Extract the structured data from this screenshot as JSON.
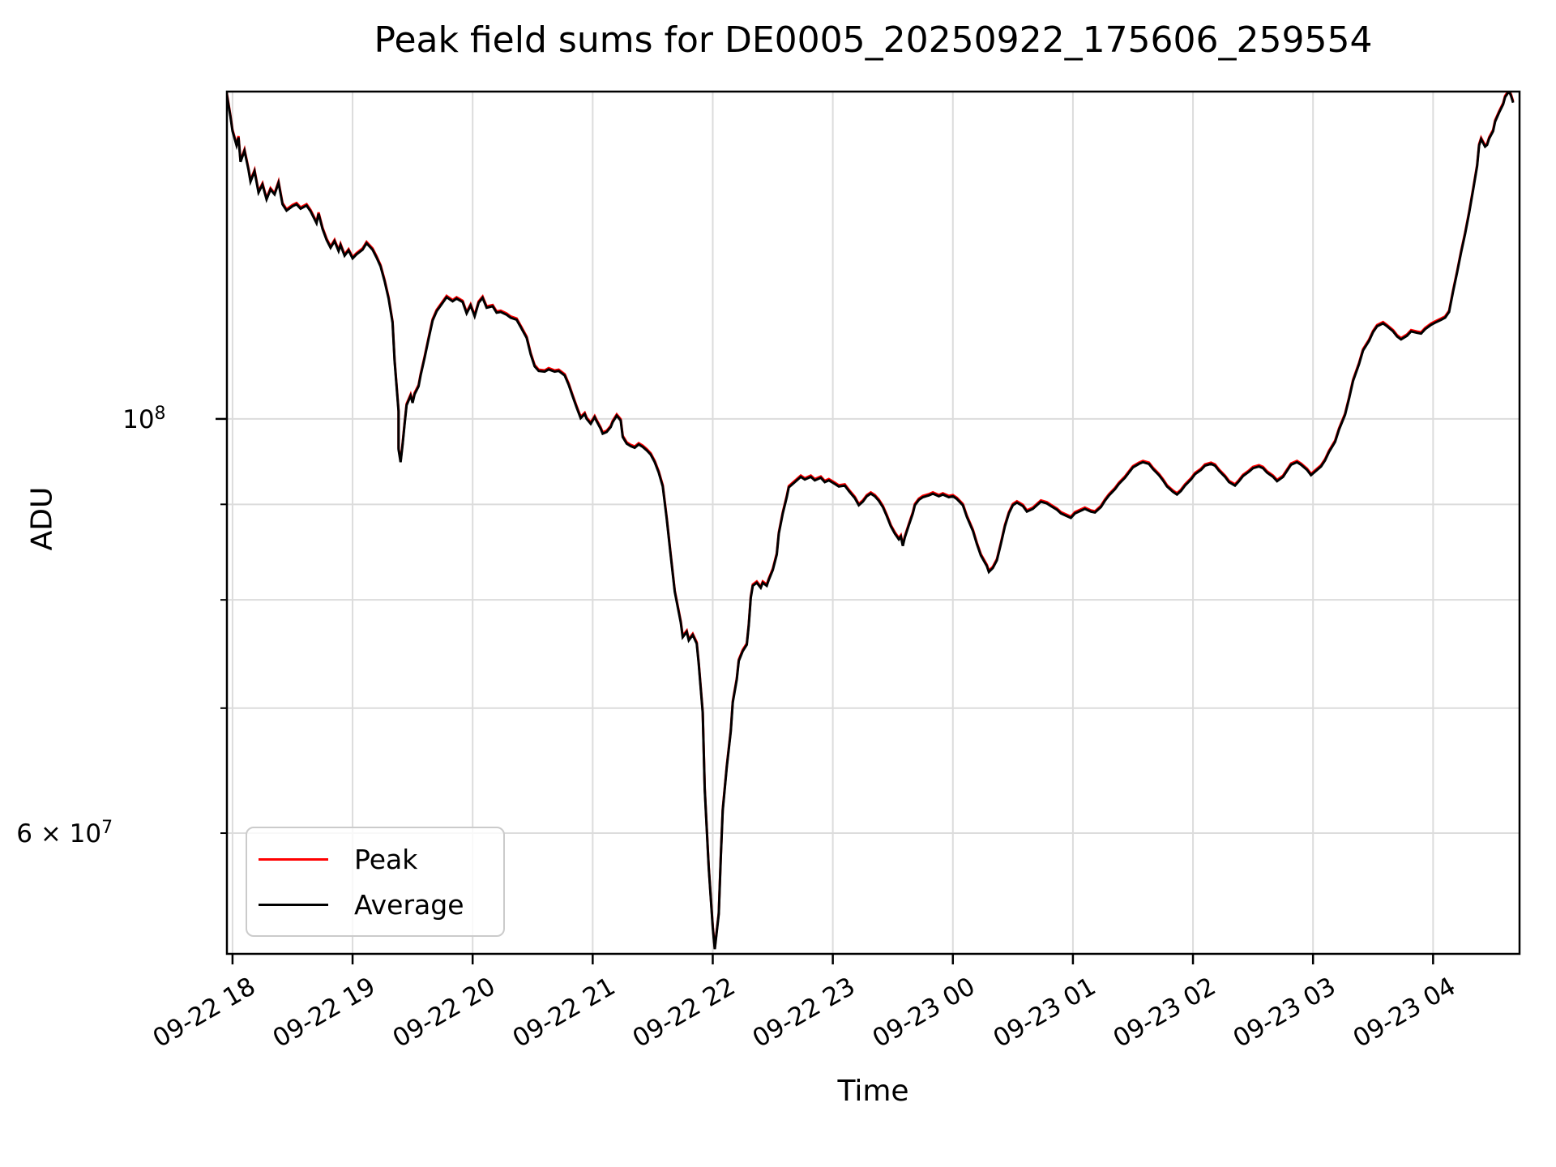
{
  "chart_data": {
    "type": "line",
    "title": "Peak field sums for DE0005_20250922_175606_259554",
    "xlabel": "Time",
    "ylabel": "ADU",
    "grid": true,
    "grid_color": "#dcdcdc",
    "x_axis": {
      "tick_labels": [
        "09-22 18",
        "09-22 19",
        "09-22 20",
        "09-22 21",
        "09-22 22",
        "09-22 23",
        "09-23 00",
        "09-23 01",
        "09-23 02",
        "09-23 03",
        "09-23 04"
      ],
      "tick_minutes": [
        0,
        60,
        120,
        180,
        240,
        300,
        360,
        420,
        480,
        540,
        600
      ],
      "label_rotation_deg": 30,
      "xlim_minutes": [
        -2.8,
        643.2
      ]
    },
    "y_axis": {
      "scale": "log",
      "ylim_adu_1e7": [
        5.17,
        14.973
      ],
      "major_tick": {
        "adu_1e7": 10,
        "label": {
          "prefix": "",
          "base": "10",
          "exp": "8"
        }
      },
      "labeled_minor_tick": {
        "adu_1e7": 6,
        "label": {
          "prefix": "6 × ",
          "base": "10",
          "exp": "7"
        }
      },
      "minor_ticks_adu_1e7": [
        6,
        7,
        8,
        9
      ],
      "gridlines_adu_1e7": [
        6,
        7,
        8,
        9,
        10
      ]
    },
    "legend": {
      "position": "lower left",
      "entries": [
        {
          "label": "Peak",
          "color": "#ff0000"
        },
        {
          "label": "Average",
          "color": "#000000"
        }
      ]
    },
    "series_note": "Peak (red) and Average (black) curves are nearly coincident; the red Peak trace is marginally higher, visible only at sharp extremes.",
    "points": {
      "time_minutes_after_2025_09_22_1800": [
        -3,
        -1,
        0,
        2,
        3,
        4,
        6,
        8,
        9,
        11,
        13,
        15,
        17,
        19,
        21,
        23,
        25,
        27,
        30,
        32,
        34,
        37,
        39,
        42,
        43,
        45,
        47,
        49,
        51,
        53,
        54,
        56,
        58,
        60,
        62,
        65,
        67,
        70,
        72,
        74,
        76,
        78,
        80,
        81,
        83,
        83,
        84,
        85,
        86,
        87,
        89,
        90,
        91,
        93,
        94,
        96,
        98,
        100,
        102,
        105,
        107,
        110,
        112,
        115,
        117,
        119,
        121,
        123,
        125,
        127,
        130,
        132,
        134,
        137,
        139,
        142,
        144,
        147,
        149,
        151,
        153,
        156,
        158,
        161,
        163,
        166,
        168,
        170,
        172,
        174,
        176,
        177,
        179,
        181,
        182,
        184,
        185,
        187,
        189,
        190,
        192,
        194,
        195,
        197,
        199,
        201,
        203,
        205,
        207,
        209,
        211,
        213,
        215,
        217,
        219,
        221,
        224,
        225,
        227,
        228,
        230,
        232,
        233,
        235,
        236,
        238,
        240,
        241,
        243,
        244,
        245,
        247,
        249,
        250,
        252,
        253,
        255,
        257,
        258,
        259,
        260,
        262,
        264,
        265,
        267,
        268,
        270,
        272,
        273,
        275,
        277,
        278,
        280,
        282,
        284,
        286,
        289,
        291,
        294,
        296,
        298,
        301,
        303,
        306,
        308,
        311,
        313,
        315,
        317,
        319,
        321,
        323,
        325,
        327,
        329,
        331,
        333,
        334,
        335,
        336,
        338,
        340,
        341,
        343,
        345,
        348,
        350,
        353,
        355,
        358,
        360,
        362,
        365,
        367,
        370,
        372,
        374,
        377,
        378,
        380,
        382,
        384,
        386,
        388,
        390,
        392,
        395,
        397,
        400,
        402,
        404,
        407,
        409,
        412,
        414,
        417,
        419,
        421,
        424,
        426,
        429,
        431,
        434,
        436,
        438,
        441,
        443,
        446,
        448,
        450,
        453,
        455,
        458,
        460,
        463,
        465,
        467,
        470,
        472,
        474,
        476,
        479,
        481,
        484,
        486,
        489,
        491,
        493,
        496,
        498,
        501,
        503,
        505,
        508,
        510,
        513,
        515,
        517,
        520,
        522,
        525,
        527,
        529,
        532,
        534,
        537,
        539,
        541,
        544,
        546,
        548,
        551,
        553,
        556,
        558,
        560,
        563,
        565,
        568,
        570,
        572,
        575,
        577,
        580,
        582,
        584,
        587,
        589,
        592,
        594,
        596,
        599,
        601,
        604,
        606,
        608,
        610,
        612,
        614,
        616,
        618,
        620,
        622,
        623,
        624,
        626,
        627,
        628,
        630,
        631,
        633,
        635,
        636,
        638,
        639,
        640
      ],
      "average_adu_1e7": [
        14.95,
        14.51,
        14.26,
        14.01,
        14.15,
        13.73,
        13.92,
        13.59,
        13.4,
        13.57,
        13.22,
        13.35,
        13.11,
        13.27,
        13.19,
        13.38,
        13.03,
        12.93,
        13.0,
        13.03,
        12.96,
        13.01,
        12.92,
        12.73,
        12.88,
        12.64,
        12.47,
        12.35,
        12.45,
        12.3,
        12.39,
        12.23,
        12.31,
        12.19,
        12.25,
        12.32,
        12.42,
        12.32,
        12.2,
        12.07,
        11.85,
        11.6,
        11.26,
        10.74,
        10.09,
        9.63,
        9.48,
        9.69,
        9.94,
        10.17,
        10.29,
        10.2,
        10.31,
        10.41,
        10.55,
        10.78,
        11.04,
        11.29,
        11.42,
        11.54,
        11.62,
        11.56,
        11.6,
        11.55,
        11.39,
        11.5,
        11.35,
        11.54,
        11.61,
        11.47,
        11.49,
        11.4,
        11.41,
        11.37,
        11.33,
        11.3,
        11.2,
        11.05,
        10.83,
        10.67,
        10.61,
        10.6,
        10.63,
        10.6,
        10.61,
        10.55,
        10.43,
        10.28,
        10.14,
        10.01,
        10.06,
        10.0,
        9.94,
        10.02,
        9.97,
        9.88,
        9.82,
        9.84,
        9.9,
        9.96,
        10.04,
        9.98,
        9.78,
        9.7,
        9.67,
        9.65,
        9.69,
        9.66,
        9.62,
        9.57,
        9.48,
        9.36,
        9.2,
        8.84,
        8.45,
        8.08,
        7.78,
        7.64,
        7.69,
        7.61,
        7.66,
        7.58,
        7.39,
        6.96,
        6.33,
        5.75,
        5.34,
        5.2,
        5.43,
        5.82,
        6.17,
        6.51,
        6.8,
        7.05,
        7.25,
        7.42,
        7.51,
        7.57,
        7.75,
        8.02,
        8.14,
        8.17,
        8.12,
        8.17,
        8.14,
        8.2,
        8.3,
        8.46,
        8.68,
        8.9,
        9.08,
        9.19,
        9.23,
        9.27,
        9.31,
        9.28,
        9.31,
        9.27,
        9.3,
        9.25,
        9.27,
        9.23,
        9.2,
        9.21,
        9.15,
        9.07,
        8.99,
        9.03,
        9.09,
        9.12,
        9.09,
        9.04,
        8.97,
        8.87,
        8.76,
        8.68,
        8.62,
        8.65,
        8.55,
        8.64,
        8.77,
        8.9,
        8.99,
        9.05,
        9.08,
        9.1,
        9.12,
        9.09,
        9.11,
        9.08,
        9.09,
        9.06,
        8.99,
        8.86,
        8.71,
        8.57,
        8.45,
        8.34,
        8.28,
        8.32,
        8.4,
        8.57,
        8.76,
        8.9,
        8.99,
        9.02,
        8.98,
        8.92,
        8.95,
        8.99,
        9.03,
        9.01,
        8.98,
        8.94,
        8.9,
        8.87,
        8.85,
        8.9,
        8.93,
        8.95,
        8.92,
        8.91,
        8.97,
        9.04,
        9.1,
        9.17,
        9.23,
        9.3,
        9.36,
        9.42,
        9.46,
        9.48,
        9.46,
        9.4,
        9.33,
        9.27,
        9.2,
        9.14,
        9.11,
        9.15,
        9.21,
        9.28,
        9.34,
        9.39,
        9.44,
        9.46,
        9.44,
        9.38,
        9.31,
        9.25,
        9.21,
        9.26,
        9.32,
        9.37,
        9.41,
        9.43,
        9.41,
        9.36,
        9.31,
        9.26,
        9.31,
        9.38,
        9.45,
        9.48,
        9.45,
        9.39,
        9.33,
        9.37,
        9.43,
        9.5,
        9.6,
        9.72,
        9.87,
        10.05,
        10.25,
        10.48,
        10.7,
        10.88,
        11.01,
        11.13,
        11.21,
        11.25,
        11.21,
        11.14,
        11.07,
        11.03,
        11.08,
        11.14,
        11.12,
        11.11,
        11.17,
        11.23,
        11.26,
        11.3,
        11.33,
        11.41,
        11.7,
        11.98,
        12.28,
        12.56,
        12.89,
        13.26,
        13.66,
        14.01,
        14.12,
        13.99,
        14.02,
        14.13,
        14.26,
        14.43,
        14.59,
        14.74,
        14.87,
        14.98,
        14.89,
        14.77
      ],
      "peak_scale_vs_average": 1.005
    }
  }
}
